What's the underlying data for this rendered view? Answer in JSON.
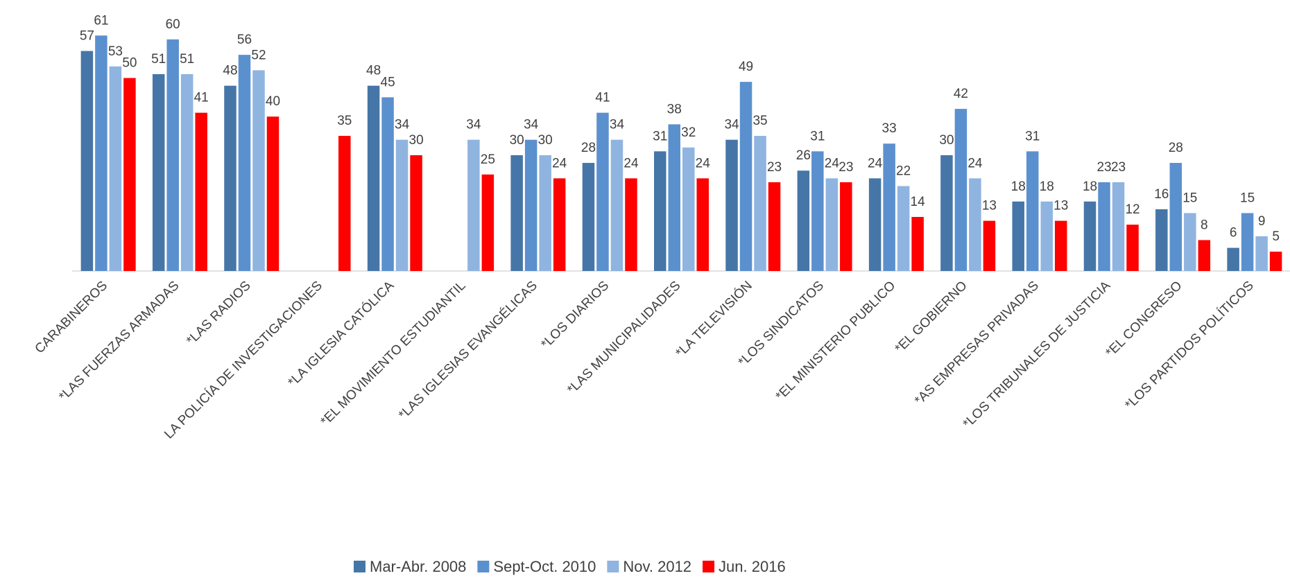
{
  "chart_data": {
    "type": "bar",
    "categories": [
      "CARABINEROS",
      "*LAS FUERZAS ARMADAS",
      "*LAS RADIOS",
      "LA POLICÍA DE  INVESTIGACIONES",
      "*LA IGLESIA CATÓLICA",
      "*EL MOVIMIENTO ESTUDIANTIL",
      "*LAS IGLESIAS EVANGÉLICAS",
      "*LOS DIARIOS",
      "*LAS MUNICIPALIDADES",
      "*LA TELEVISIÓN",
      "*LOS SINDICATOS",
      "*EL MINISTERIO PUBLICO",
      "*EL GOBIERNO",
      "*AS EMPRESAS PRIVADAS",
      "*LOS TRIBUNALES DE JUSTICIA",
      "*EL CONGRESO",
      "*LOS PARTIDOS POLÍTICOS"
    ],
    "series": [
      {
        "name": "Mar-Abr. 2008",
        "color": "#4676a8",
        "values": [
          57,
          51,
          48,
          null,
          48,
          null,
          30,
          28,
          31,
          34,
          26,
          24,
          30,
          18,
          18,
          16,
          6
        ]
      },
      {
        "name": "Sept-Oct. 2010",
        "color": "#5b90cf",
        "values": [
          61,
          60,
          56,
          null,
          45,
          null,
          34,
          41,
          38,
          49,
          31,
          33,
          42,
          31,
          23,
          28,
          15
        ]
      },
      {
        "name": "Nov. 2012",
        "color": "#8fb4e0",
        "values": [
          53,
          51,
          52,
          null,
          34,
          34,
          30,
          34,
          32,
          35,
          24,
          22,
          24,
          18,
          23,
          15,
          9
        ]
      },
      {
        "name": "Jun. 2016",
        "color": "#ff0000",
        "values": [
          50,
          41,
          40,
          35,
          30,
          25,
          24,
          24,
          24,
          23,
          23,
          14,
          13,
          13,
          12,
          8,
          5
        ]
      }
    ],
    "ylim": [
      0,
      65
    ],
    "legend": "bottom"
  }
}
